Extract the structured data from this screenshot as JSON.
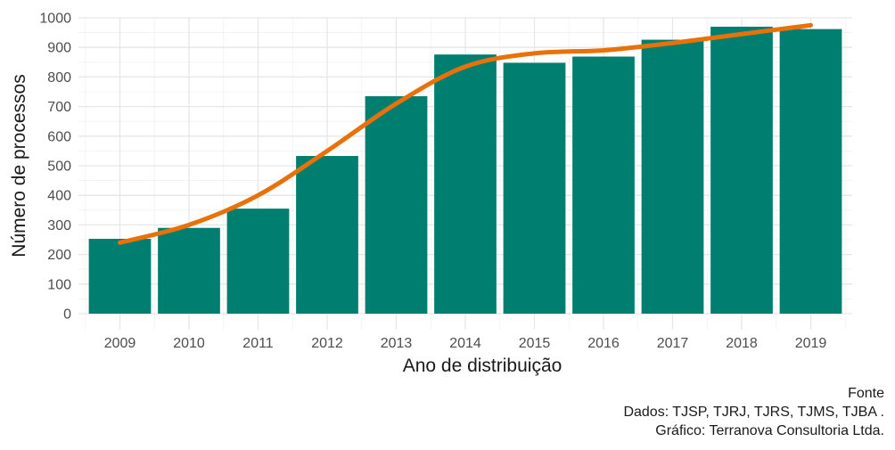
{
  "chart_data": {
    "type": "bar",
    "categories": [
      "2009",
      "2010",
      "2011",
      "2012",
      "2013",
      "2014",
      "2015",
      "2016",
      "2017",
      "2018",
      "2019"
    ],
    "series": [
      {
        "values": [
          253,
          290,
          355,
          533,
          735,
          876,
          848,
          869,
          926,
          970,
          962
        ]
      }
    ],
    "trend_line": {
      "x": [
        "2009",
        "2010",
        "2011",
        "2012",
        "2013",
        "2014",
        "2015",
        "2016",
        "2017",
        "2018",
        "2019"
      ],
      "y": [
        240,
        300,
        400,
        550,
        710,
        835,
        880,
        890,
        915,
        945,
        975
      ]
    },
    "xlabel": "Ano de distribuição",
    "ylabel": "Número de processos",
    "ylim": [
      0,
      1000
    ],
    "yticks": [
      0,
      100,
      200,
      300,
      400,
      500,
      600,
      700,
      800,
      900,
      1000
    ],
    "grid": true,
    "legend": "none",
    "bar_color": "#007f71",
    "line_color": "#e8710a",
    "caption": [
      "Fonte",
      "Dados: TJSP, TJRJ, TJRS, TJMS, TJBA .",
      "Gráfico: Terranova Consultoria Ltda."
    ]
  }
}
